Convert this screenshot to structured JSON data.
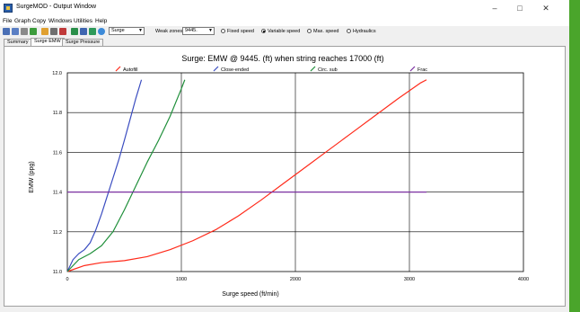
{
  "window": {
    "title": "SurgeMOD - Output Window"
  },
  "menu": [
    "File",
    "Graph",
    "Copy",
    "Windows",
    "Utilities",
    "Help"
  ],
  "toolbar": {
    "plot_select": "Surge",
    "weak_zones_label": "Weak zones:",
    "weak_zones_value": "9445.",
    "speed_options": [
      {
        "label": "Fixed speed",
        "checked": false
      },
      {
        "label": "Variable speed",
        "checked": true
      },
      {
        "label": "Max. speed",
        "checked": false
      },
      {
        "label": "Hydraulics",
        "checked": false
      }
    ]
  },
  "tabs": [
    {
      "label": "Summary",
      "active": false
    },
    {
      "label": "Surge EMW",
      "active": true
    },
    {
      "label": "Surge Pressure",
      "active": false
    }
  ],
  "chart_data": {
    "type": "line",
    "title": "Surge: EMW @ 9445. (ft) when string reaches 17000 (ft)",
    "xlabel": "Surge speed (ft/min)",
    "ylabel": "EMW (ppg)",
    "xlim": [
      0,
      4000
    ],
    "ylim": [
      11.0,
      12.0
    ],
    "xticks": [
      0,
      1000,
      2000,
      3000,
      4000
    ],
    "yticks": [
      11.0,
      11.2,
      11.4,
      11.6,
      11.8,
      12.0
    ],
    "grid": true,
    "legend_position": "top",
    "series": [
      {
        "name": "Autofill",
        "color": "#ff2a1a",
        "x": [
          0,
          150,
          300,
          500,
          700,
          900,
          1100,
          1300,
          1500,
          1700,
          1900,
          2100,
          2300,
          2500,
          2700,
          2900,
          3100,
          3150
        ],
        "y": [
          11.0,
          11.03,
          11.045,
          11.055,
          11.075,
          11.11,
          11.155,
          11.21,
          11.28,
          11.36,
          11.445,
          11.53,
          11.615,
          11.7,
          11.785,
          11.87,
          11.95,
          11.965
        ]
      },
      {
        "name": "Close-ended",
        "color": "#3a4cc0",
        "x": [
          0,
          50,
          100,
          150,
          200,
          250,
          300,
          350,
          400,
          450,
          500,
          550,
          600,
          650
        ],
        "y": [
          11.0,
          11.06,
          11.09,
          11.11,
          11.145,
          11.21,
          11.29,
          11.38,
          11.47,
          11.56,
          11.66,
          11.765,
          11.87,
          11.965
        ]
      },
      {
        "name": "Circ. sub",
        "color": "#1f8f3a",
        "x": [
          0,
          100,
          200,
          300,
          400,
          500,
          600,
          700,
          800,
          900,
          1000,
          1030
        ],
        "y": [
          11.0,
          11.06,
          11.09,
          11.13,
          11.2,
          11.31,
          11.43,
          11.55,
          11.66,
          11.78,
          11.92,
          11.965
        ]
      },
      {
        "name": "Frac",
        "color": "#7a2fa0",
        "x": [
          0,
          3150
        ],
        "y": [
          11.4,
          11.4
        ]
      }
    ]
  }
}
